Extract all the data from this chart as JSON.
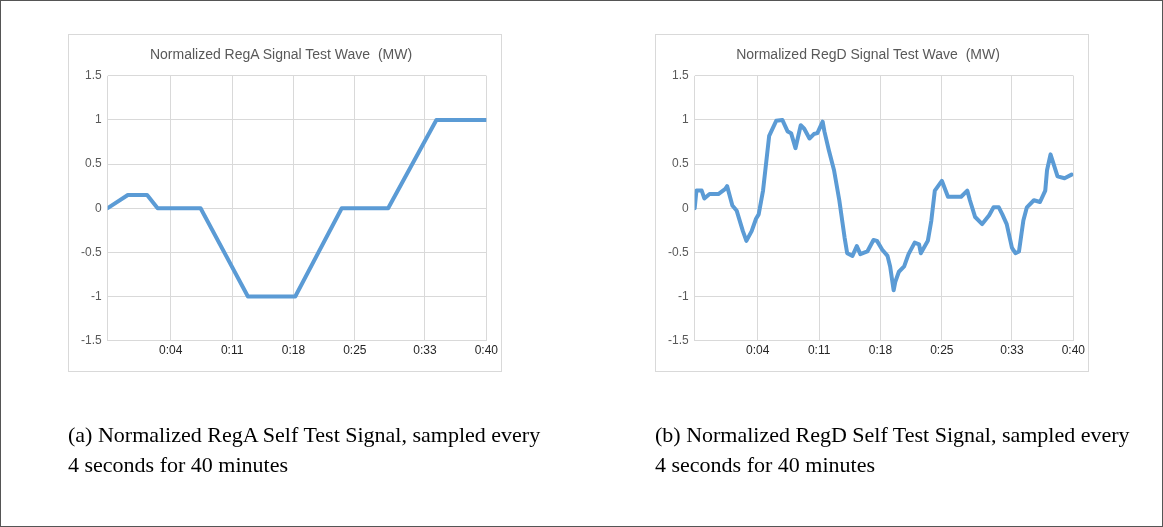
{
  "chart_data": [
    {
      "type": "line",
      "title": "Normalized RegA Signal Test Wave  (MW)",
      "series": [
        {
          "color": "#5b9bd5",
          "x": [
            -3.2,
            -0.9,
            1.3,
            2.5,
            7.4,
            12.8,
            18.2,
            23.5,
            28.8,
            34.3,
            40
          ],
          "values": [
            0,
            0.15,
            0.15,
            0,
            0,
            -1,
            -1,
            0,
            0,
            1,
            1
          ]
        }
      ],
      "xlim": [
        -3.2,
        40
      ],
      "xticks": [
        {
          "value": -3.2,
          "label": null
        },
        {
          "value": 4,
          "label": "0:04"
        },
        {
          "value": 11,
          "label": "0:11"
        },
        {
          "value": 18,
          "label": "0:18"
        },
        {
          "value": 25,
          "label": "0:25"
        },
        {
          "value": 33,
          "label": "0:33"
        },
        {
          "value": 40,
          "label": "0:40"
        }
      ],
      "ylim": [
        -1.5,
        1.5
      ],
      "yticks": [
        -1.5,
        -1,
        -0.5,
        0,
        0.5,
        1,
        1.5
      ],
      "grid": true,
      "legend": false,
      "marker": "none",
      "line_style": "solid",
      "annotations": [
        "(a) Normalized RegA Self Test Signal, sampled every 4 seconds for 40 minutes"
      ]
    },
    {
      "type": "line",
      "title": "Normalized RegD Signal Test Wave  (MW)",
      "series": [
        {
          "color": "#5b9bd5",
          "x": [
            -3.2,
            -3.0,
            -2.4,
            -2.1,
            -1.5,
            -0.5,
            0.3,
            0.5,
            1.1,
            1.6,
            2.3,
            2.7,
            3.3,
            3.8,
            4.1,
            4.6,
            5.3,
            6.1,
            6.8,
            7.4,
            7.8,
            8.3,
            8.9,
            9.3,
            9.9,
            10.4,
            10.8,
            11.4,
            11.6,
            12.1,
            12.7,
            13.3,
            13.9,
            14.2,
            14.8,
            15.3,
            15.7,
            16.5,
            17.2,
            17.6,
            18.2,
            18.8,
            19.1,
            19.5,
            19.7,
            20.1,
            20.7,
            21.2,
            21.9,
            22.4,
            22.6,
            23.4,
            23.8,
            24.2,
            25.0,
            25.7,
            26.5,
            27.2,
            27.9,
            28.2,
            28.8,
            29.6,
            30.4,
            30.9,
            31.5,
            31.9,
            32.4,
            33.0,
            33.4,
            33.8,
            34.3,
            34.7,
            35.5,
            36.2,
            36.8,
            37.0,
            37.4,
            38.2,
            39.0,
            39.8
          ],
          "values": [
            0,
            0.2,
            0.2,
            0.11,
            0.16,
            0.16,
            0.22,
            0.25,
            0.03,
            -0.03,
            -0.26,
            -0.37,
            -0.26,
            -0.12,
            -0.07,
            0.2,
            0.82,
            0.99,
            1.0,
            0.87,
            0.85,
            0.68,
            0.94,
            0.9,
            0.79,
            0.84,
            0.85,
            0.98,
            0.87,
            0.66,
            0.43,
            0.09,
            -0.33,
            -0.51,
            -0.54,
            -0.43,
            -0.52,
            -0.49,
            -0.36,
            -0.37,
            -0.47,
            -0.54,
            -0.66,
            -0.93,
            -0.83,
            -0.72,
            -0.66,
            -0.52,
            -0.39,
            -0.41,
            -0.51,
            -0.37,
            -0.14,
            0.2,
            0.31,
            0.13,
            0.13,
            0.13,
            0.2,
            0.09,
            -0.1,
            -0.18,
            -0.08,
            0.01,
            0.01,
            -0.07,
            -0.18,
            -0.45,
            -0.51,
            -0.49,
            -0.14,
            0.01,
            0.09,
            0.07,
            0.2,
            0.43,
            0.61,
            0.36,
            0.34,
            0.38
          ]
        }
      ],
      "xlim": [
        -3.2,
        40
      ],
      "xticks": [
        {
          "value": -3.2,
          "label": null
        },
        {
          "value": 4,
          "label": "0:04"
        },
        {
          "value": 11,
          "label": "0:11"
        },
        {
          "value": 18,
          "label": "0:18"
        },
        {
          "value": 25,
          "label": "0:25"
        },
        {
          "value": 33,
          "label": "0:33"
        },
        {
          "value": 40,
          "label": "0:40"
        }
      ],
      "ylim": [
        -1.5,
        1.5
      ],
      "yticks": [
        -1.5,
        -1,
        -0.5,
        0,
        0.5,
        1,
        1.5
      ],
      "grid": true,
      "legend": false,
      "marker": "none",
      "line_style": "solid",
      "annotations": [
        "(b) Normalized RegD Self Test Signal, sampled every 4 seconds for 40 minutes"
      ]
    }
  ]
}
